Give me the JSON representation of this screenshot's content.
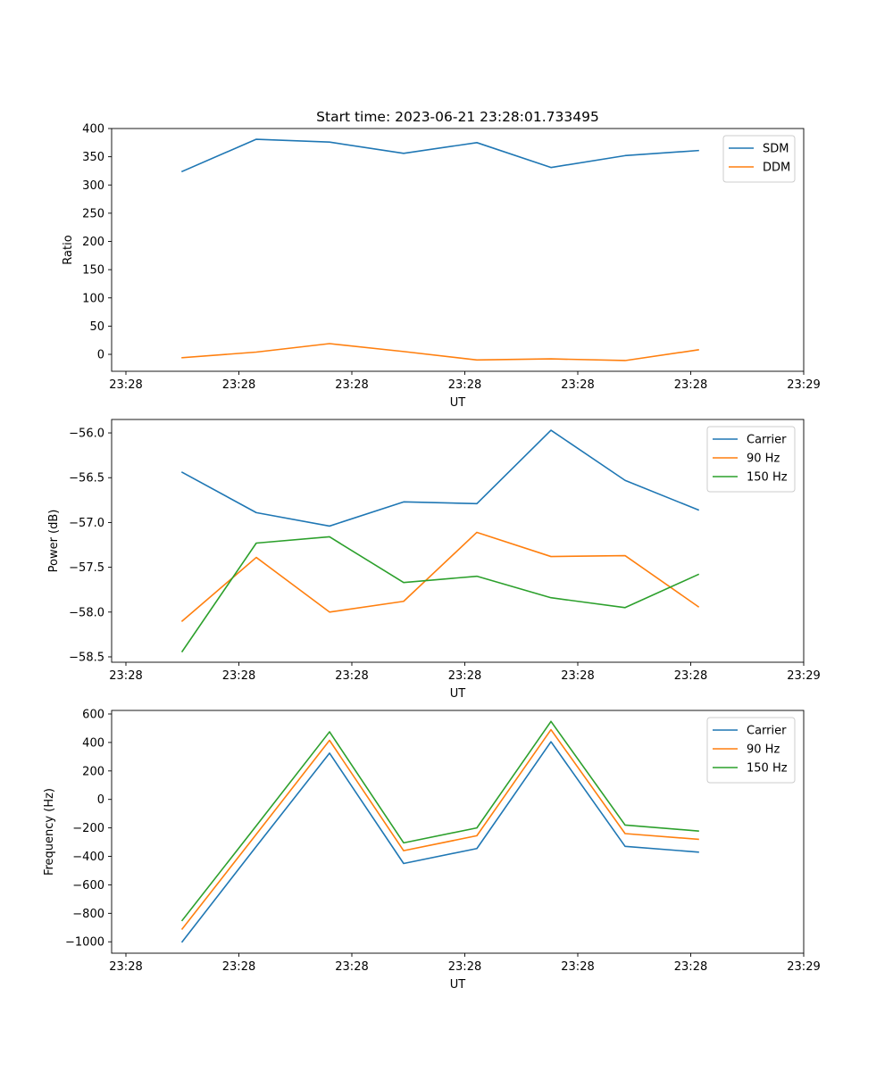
{
  "title": "Start time: 2023-06-21 23:28:01.733495",
  "chart_data": [
    {
      "type": "line",
      "xlabel": "UT",
      "ylabel": "Ratio",
      "x_tick_labels": [
        "23:28",
        "23:28",
        "23:28",
        "23:28",
        "23:28",
        "23:28",
        "23:29"
      ],
      "y_ticks": [
        0,
        50,
        100,
        150,
        200,
        250,
        300,
        350,
        400
      ],
      "ylim": [
        -30,
        400
      ],
      "legend_position": "upper right",
      "series": [
        {
          "name": "SDM",
          "color": "#1f77b4",
          "values": [
            324,
            381,
            376,
            356,
            375,
            331,
            352,
            361
          ]
        },
        {
          "name": "DDM",
          "color": "#ff7f0e",
          "values": [
            -6,
            4,
            19,
            5,
            -10,
            -8,
            -11,
            8
          ]
        }
      ]
    },
    {
      "type": "line",
      "xlabel": "UT",
      "ylabel": "Power (dB)",
      "x_tick_labels": [
        "23:28",
        "23:28",
        "23:28",
        "23:28",
        "23:28",
        "23:28",
        "23:29"
      ],
      "y_ticks": [
        -58.5,
        -58.0,
        -57.5,
        -57.0,
        -56.5,
        -56.0
      ],
      "y_tick_labels": [
        "−58.5",
        "−58.0",
        "−57.5",
        "−57.0",
        "−56.5",
        "−56.0"
      ],
      "ylim": [
        -58.56,
        -55.85
      ],
      "legend_position": "upper right",
      "series": [
        {
          "name": "Carrier",
          "color": "#1f77b4",
          "values": [
            -56.44,
            -56.89,
            -57.04,
            -56.77,
            -56.79,
            -55.97,
            -56.53,
            -56.86
          ]
        },
        {
          "name": "90 Hz",
          "color": "#ff7f0e",
          "values": [
            -58.1,
            -57.39,
            -58.0,
            -57.88,
            -57.11,
            -57.38,
            -57.37,
            -57.94
          ]
        },
        {
          "name": "150 Hz",
          "color": "#2ca02c",
          "values": [
            -58.44,
            -57.23,
            -57.16,
            -57.67,
            -57.6,
            -57.84,
            -57.95,
            -57.58
          ]
        }
      ]
    },
    {
      "type": "line",
      "xlabel": "UT",
      "ylabel": "Frequency (Hz)",
      "x_tick_labels": [
        "23:28",
        "23:28",
        "23:28",
        "23:28",
        "23:28",
        "23:28",
        "23:29"
      ],
      "y_ticks": [
        -1000,
        -800,
        -600,
        -400,
        -200,
        0,
        200,
        400,
        600
      ],
      "y_tick_labels": [
        "−1000",
        "−800",
        "−600",
        "−400",
        "−200",
        "0",
        "200",
        "400",
        "600"
      ],
      "ylim": [
        -1080,
        625
      ],
      "legend_position": "upper right",
      "series": [
        {
          "name": "Carrier",
          "color": "#1f77b4",
          "values": [
            -1000,
            -330,
            325,
            -450,
            -345,
            405,
            -330,
            -370
          ]
        },
        {
          "name": "90 Hz",
          "color": "#ff7f0e",
          "values": [
            -910,
            -245,
            415,
            -360,
            -255,
            490,
            -240,
            -280
          ]
        },
        {
          "name": "150 Hz",
          "color": "#2ca02c",
          "values": [
            -850,
            -185,
            475,
            -305,
            -200,
            548,
            -180,
            -222
          ]
        }
      ]
    }
  ]
}
